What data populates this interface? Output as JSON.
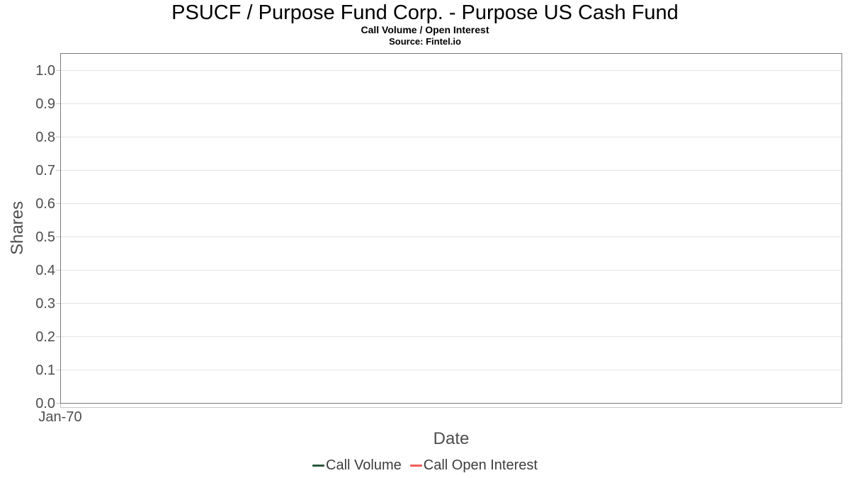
{
  "chart_data": {
    "type": "line",
    "title": "PSUCF / Purpose Fund Corp. - Purpose US Cash Fund",
    "subtitle": "Call Volume / Open Interest",
    "source": "Source: Fintel.io",
    "xlabel": "Date",
    "ylabel": "Shares",
    "x_tick_labels": [
      "Jan-70"
    ],
    "y_tick_labels": [
      "0.0",
      "0.1",
      "0.2",
      "0.3",
      "0.4",
      "0.5",
      "0.6",
      "0.7",
      "0.8",
      "0.9",
      "1.0"
    ],
    "ylim": [
      0.0,
      1.0
    ],
    "grid": "horizontal",
    "legend_position": "bottom-center",
    "series": [
      {
        "name": "Call Volume",
        "color": "#2d573d",
        "x": [],
        "values": []
      },
      {
        "name": "Call Open Interest",
        "color": "#f45b5b",
        "x": [],
        "values": []
      }
    ]
  },
  "colors": {
    "background": "#ffffff",
    "plot_border": "#7b7b7b",
    "gridline": "#e4e4e4",
    "axis_line": "#c9c9c9",
    "tick_text": "#4d4d4d",
    "title_text": "#000000",
    "legend_text": "#3d3d3d",
    "call_volume": "#2d573d",
    "call_open_interest": "#f45b5b"
  }
}
